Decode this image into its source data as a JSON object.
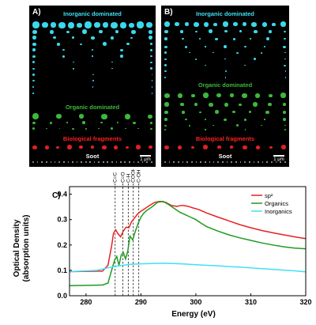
{
  "panels": [
    {
      "label": "A)",
      "inorganic": "Inorganic dominated",
      "organic": "Organic dominated",
      "biological": "Biological fragments",
      "soot": "Soot",
      "scale": "1 μm"
    },
    {
      "label": "B)",
      "inorganic": "Inorganic dominated",
      "organic": "Organic dominated",
      "biological": "Biological fragments",
      "soot": "Soot",
      "scale": "1 μm"
    }
  ],
  "colors": {
    "inorganic": "#40e0f0",
    "organic": "#3cb83c",
    "biological": "#ff2020",
    "sp2": "#e82020",
    "organics_line": "#1f9a1f",
    "inorganics_line": "#40e0f8"
  },
  "chart_data": {
    "type": "line",
    "panel_label": "C)",
    "xlabel": "Energy (eV)",
    "ylabel_line1": "Optical Density",
    "ylabel_line2": "(absorption units)",
    "xlim": [
      277,
      320
    ],
    "ylim": [
      0.0,
      0.43
    ],
    "xticks": [
      280,
      290,
      300,
      310,
      320
    ],
    "yticks": [
      0.0,
      0.1,
      0.2,
      0.3,
      0.4
    ],
    "xtick_labels": [
      "280",
      "290",
      "300",
      "310",
      "320"
    ],
    "ytick_labels": [
      "0.0",
      "0.1",
      "0.2",
      "0.3",
      "0.4"
    ],
    "legend_position": "top-right",
    "markers": [
      {
        "label": "C=C",
        "x": 285.3
      },
      {
        "label": "C=O",
        "x": 286.7
      },
      {
        "label": "C-H",
        "x": 287.7
      },
      {
        "label": "COOH",
        "x": 288.6
      },
      {
        "label": "C-OH",
        "x": 289.6
      }
    ],
    "series": [
      {
        "name": "sp²",
        "color": "#e82020",
        "x": [
          277,
          283,
          284,
          284.7,
          285,
          285.4,
          285.8,
          286.3,
          286.8,
          287.3,
          287.8,
          288.3,
          288.8,
          289.3,
          289.8,
          290.5,
          291.5,
          292.5,
          293.5,
          294.5,
          295.5,
          296.5,
          297.5,
          298.5,
          299.5,
          300.5,
          302,
          304,
          306,
          308,
          310,
          312,
          314,
          316,
          318,
          320
        ],
        "y": [
          0.095,
          0.097,
          0.12,
          0.2,
          0.245,
          0.26,
          0.245,
          0.232,
          0.255,
          0.27,
          0.268,
          0.292,
          0.305,
          0.32,
          0.33,
          0.34,
          0.355,
          0.368,
          0.372,
          0.368,
          0.356,
          0.352,
          0.356,
          0.353,
          0.346,
          0.34,
          0.326,
          0.31,
          0.295,
          0.28,
          0.268,
          0.257,
          0.248,
          0.24,
          0.232,
          0.225
        ]
      },
      {
        "name": "Organics",
        "color": "#1f9a1f",
        "x": [
          277,
          283,
          284,
          284.8,
          285.2,
          285.6,
          286,
          286.4,
          286.8,
          287.2,
          287.6,
          288,
          288.5,
          289,
          289.5,
          290,
          290.5,
          291,
          292,
          293,
          294,
          295,
          296,
          297,
          298,
          299,
          300,
          301,
          302,
          304,
          306,
          308,
          310,
          312,
          314,
          316,
          318,
          320
        ],
        "y": [
          0.04,
          0.042,
          0.05,
          0.11,
          0.14,
          0.155,
          0.12,
          0.16,
          0.17,
          0.145,
          0.175,
          0.235,
          0.22,
          0.255,
          0.285,
          0.31,
          0.325,
          0.335,
          0.35,
          0.368,
          0.372,
          0.36,
          0.345,
          0.33,
          0.32,
          0.31,
          0.3,
          0.285,
          0.272,
          0.255,
          0.24,
          0.228,
          0.218,
          0.208,
          0.2,
          0.193,
          0.188,
          0.185
        ]
      },
      {
        "name": "Inorganics",
        "color": "#40e0f8",
        "x": [
          277,
          282,
          284,
          286,
          288,
          290,
          292,
          294,
          296,
          298,
          300,
          302,
          304,
          306,
          308,
          310,
          312,
          314,
          316,
          318,
          320
        ],
        "y": [
          0.095,
          0.1,
          0.11,
          0.118,
          0.124,
          0.126,
          0.127,
          0.128,
          0.127,
          0.125,
          0.122,
          0.12,
          0.118,
          0.115,
          0.113,
          0.11,
          0.107,
          0.104,
          0.101,
          0.098,
          0.094
        ]
      }
    ]
  }
}
